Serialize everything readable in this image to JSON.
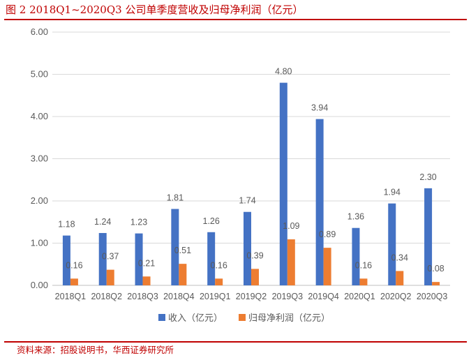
{
  "title": "图 2   2018Q1~2020Q3 公司单季度营收及归母净利润（亿元）",
  "source": "资料来源：招股说明书，华西证券研究所",
  "colors": {
    "accent": "#c00000",
    "revenue": "#4472c4",
    "profit": "#ed7d31",
    "grid": "#d9d9d9",
    "text": "#595959"
  },
  "chart_data": {
    "type": "bar",
    "categories": [
      "2018Q1",
      "2018Q2",
      "2018Q3",
      "2018Q4",
      "2019Q1",
      "2019Q2",
      "2019Q3",
      "2019Q4",
      "2020Q1",
      "2020Q2",
      "2020Q3"
    ],
    "series": [
      {
        "name": "收入（亿元）",
        "values": [
          1.18,
          1.24,
          1.23,
          1.81,
          1.26,
          1.74,
          4.8,
          3.94,
          1.36,
          1.94,
          2.3
        ]
      },
      {
        "name": "归母净利润（亿元）",
        "values": [
          0.16,
          0.37,
          0.21,
          0.51,
          0.16,
          0.39,
          1.09,
          0.89,
          0.16,
          0.34,
          0.08
        ]
      }
    ],
    "ylim": [
      0,
      6
    ],
    "yticks": [
      "0.00",
      "1.00",
      "2.00",
      "3.00",
      "4.00",
      "5.00",
      "6.00"
    ],
    "grid": true,
    "legend": "bottom"
  }
}
